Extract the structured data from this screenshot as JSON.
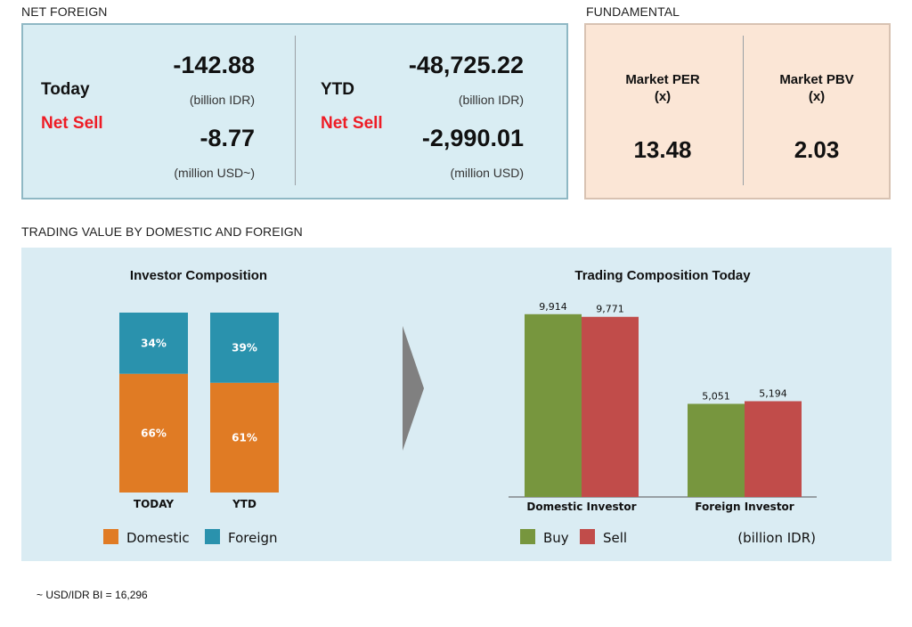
{
  "net_foreign": {
    "section_title": "NET FOREIGN",
    "today": {
      "label": "Today",
      "status": "Net Sell",
      "value_idr": "-142.88",
      "unit_idr": "(billion IDR)",
      "value_usd": "-8.77",
      "unit_usd": "(million USD~)"
    },
    "ytd": {
      "label": "YTD",
      "status": "Net Sell",
      "value_idr": "-48,725.22",
      "unit_idr": "(billion IDR)",
      "value_usd": "-2,990.01",
      "unit_usd": "(million USD)"
    }
  },
  "fundamental": {
    "section_title": "FUNDAMENTAL",
    "per": {
      "label_line1": "Market PER",
      "label_line2": "(x)",
      "value": "13.48"
    },
    "pbv": {
      "label_line1": "Market PBV",
      "label_line2": "(x)",
      "value": "2.03"
    }
  },
  "trading_value": {
    "section_title": "TRADING VALUE BY DOMESTIC AND FOREIGN"
  },
  "colors": {
    "domestic": "#e07b24",
    "foreign": "#2a92ad",
    "buy": "#77963e",
    "sell": "#c14c4a",
    "net_sell": "#ee1c25",
    "arrow": "#808080"
  },
  "chart_data": [
    {
      "type": "bar",
      "stacked": true,
      "percent": true,
      "title": "Investor Composition",
      "categories": [
        "TODAY",
        "YTD"
      ],
      "series": [
        {
          "name": "Domestic",
          "values": [
            66,
            61
          ],
          "labels": [
            "66%",
            "61%"
          ]
        },
        {
          "name": "Foreign",
          "values": [
            34,
            39
          ],
          "labels": [
            "34%",
            "39%"
          ]
        }
      ],
      "ylim": [
        0,
        100
      ],
      "legend": "bottom",
      "grid": false
    },
    {
      "type": "bar",
      "title": "Trading Composition Today",
      "categories": [
        "Domestic Investor",
        "Foreign Investor"
      ],
      "series": [
        {
          "name": "Buy",
          "values": [
            9914,
            5051
          ],
          "labels": [
            "9,914",
            "5,051"
          ]
        },
        {
          "name": "Sell",
          "values": [
            9771,
            5194
          ],
          "labels": [
            "9,771",
            "5,194"
          ]
        }
      ],
      "ylim": [
        0,
        10000
      ],
      "unit_note": "(billion IDR)",
      "legend": "bottom",
      "grid": false
    }
  ],
  "footnote": "~ USD/IDR BI = 16,296"
}
